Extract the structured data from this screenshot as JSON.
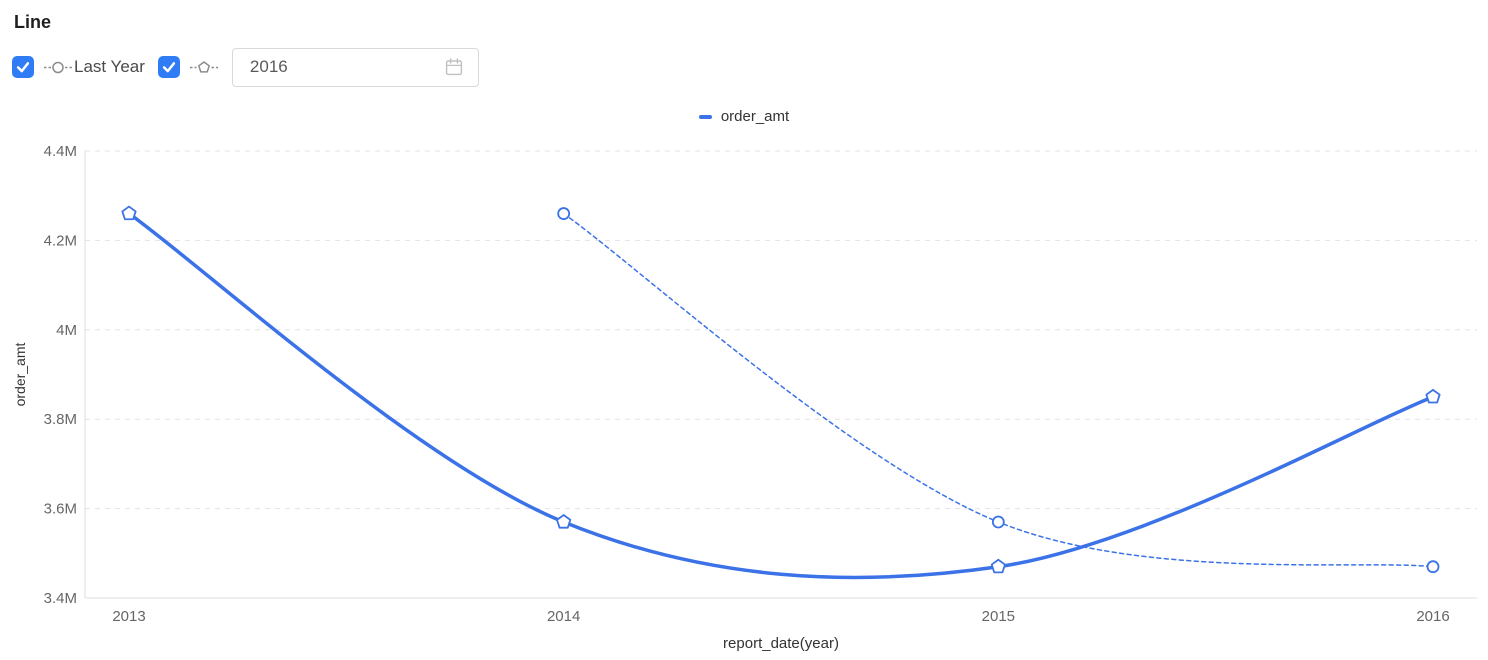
{
  "header": {
    "title": "Line",
    "controls": {
      "last_year_checkbox_checked": true,
      "last_year_label": "Last Year",
      "current_year_checkbox_checked": true,
      "year_value": "2016"
    }
  },
  "legend": {
    "items": [
      {
        "label": "order_amt",
        "color": "#3B72E8"
      }
    ]
  },
  "colors": {
    "accent_blue": "#2F7CF5",
    "series_blue": "#3B72E8",
    "gridline": "#E3E3E6",
    "axis_line": "#DCDCDC",
    "tick_text": "#666666",
    "axis_title_text": "#333333"
  },
  "chart_data": {
    "type": "line",
    "title": "",
    "xlabel": "report_date(year)",
    "ylabel": "order_amt",
    "x_ticks": [
      "2013",
      "2014",
      "2015",
      "2016"
    ],
    "y_ticks": [
      "3.4M",
      "3.6M",
      "3.8M",
      "4M",
      "4.2M",
      "4.4M"
    ],
    "ylim_m": [
      3.4,
      4.4
    ],
    "grid": true,
    "legend_position": "top-center",
    "series": [
      {
        "name": "order_amt",
        "style": "solid",
        "marker": "pentagon",
        "color": "#3B72E8",
        "x": [
          2013,
          2014,
          2015,
          2016
        ],
        "values_m": [
          4.26,
          3.57,
          3.47,
          3.85
        ]
      },
      {
        "name": "Last Year",
        "style": "dashed",
        "marker": "circle",
        "color": "#3B72E8",
        "x": [
          2014,
          2015,
          2016
        ],
        "values_m": [
          4.26,
          3.57,
          3.47
        ]
      }
    ]
  }
}
